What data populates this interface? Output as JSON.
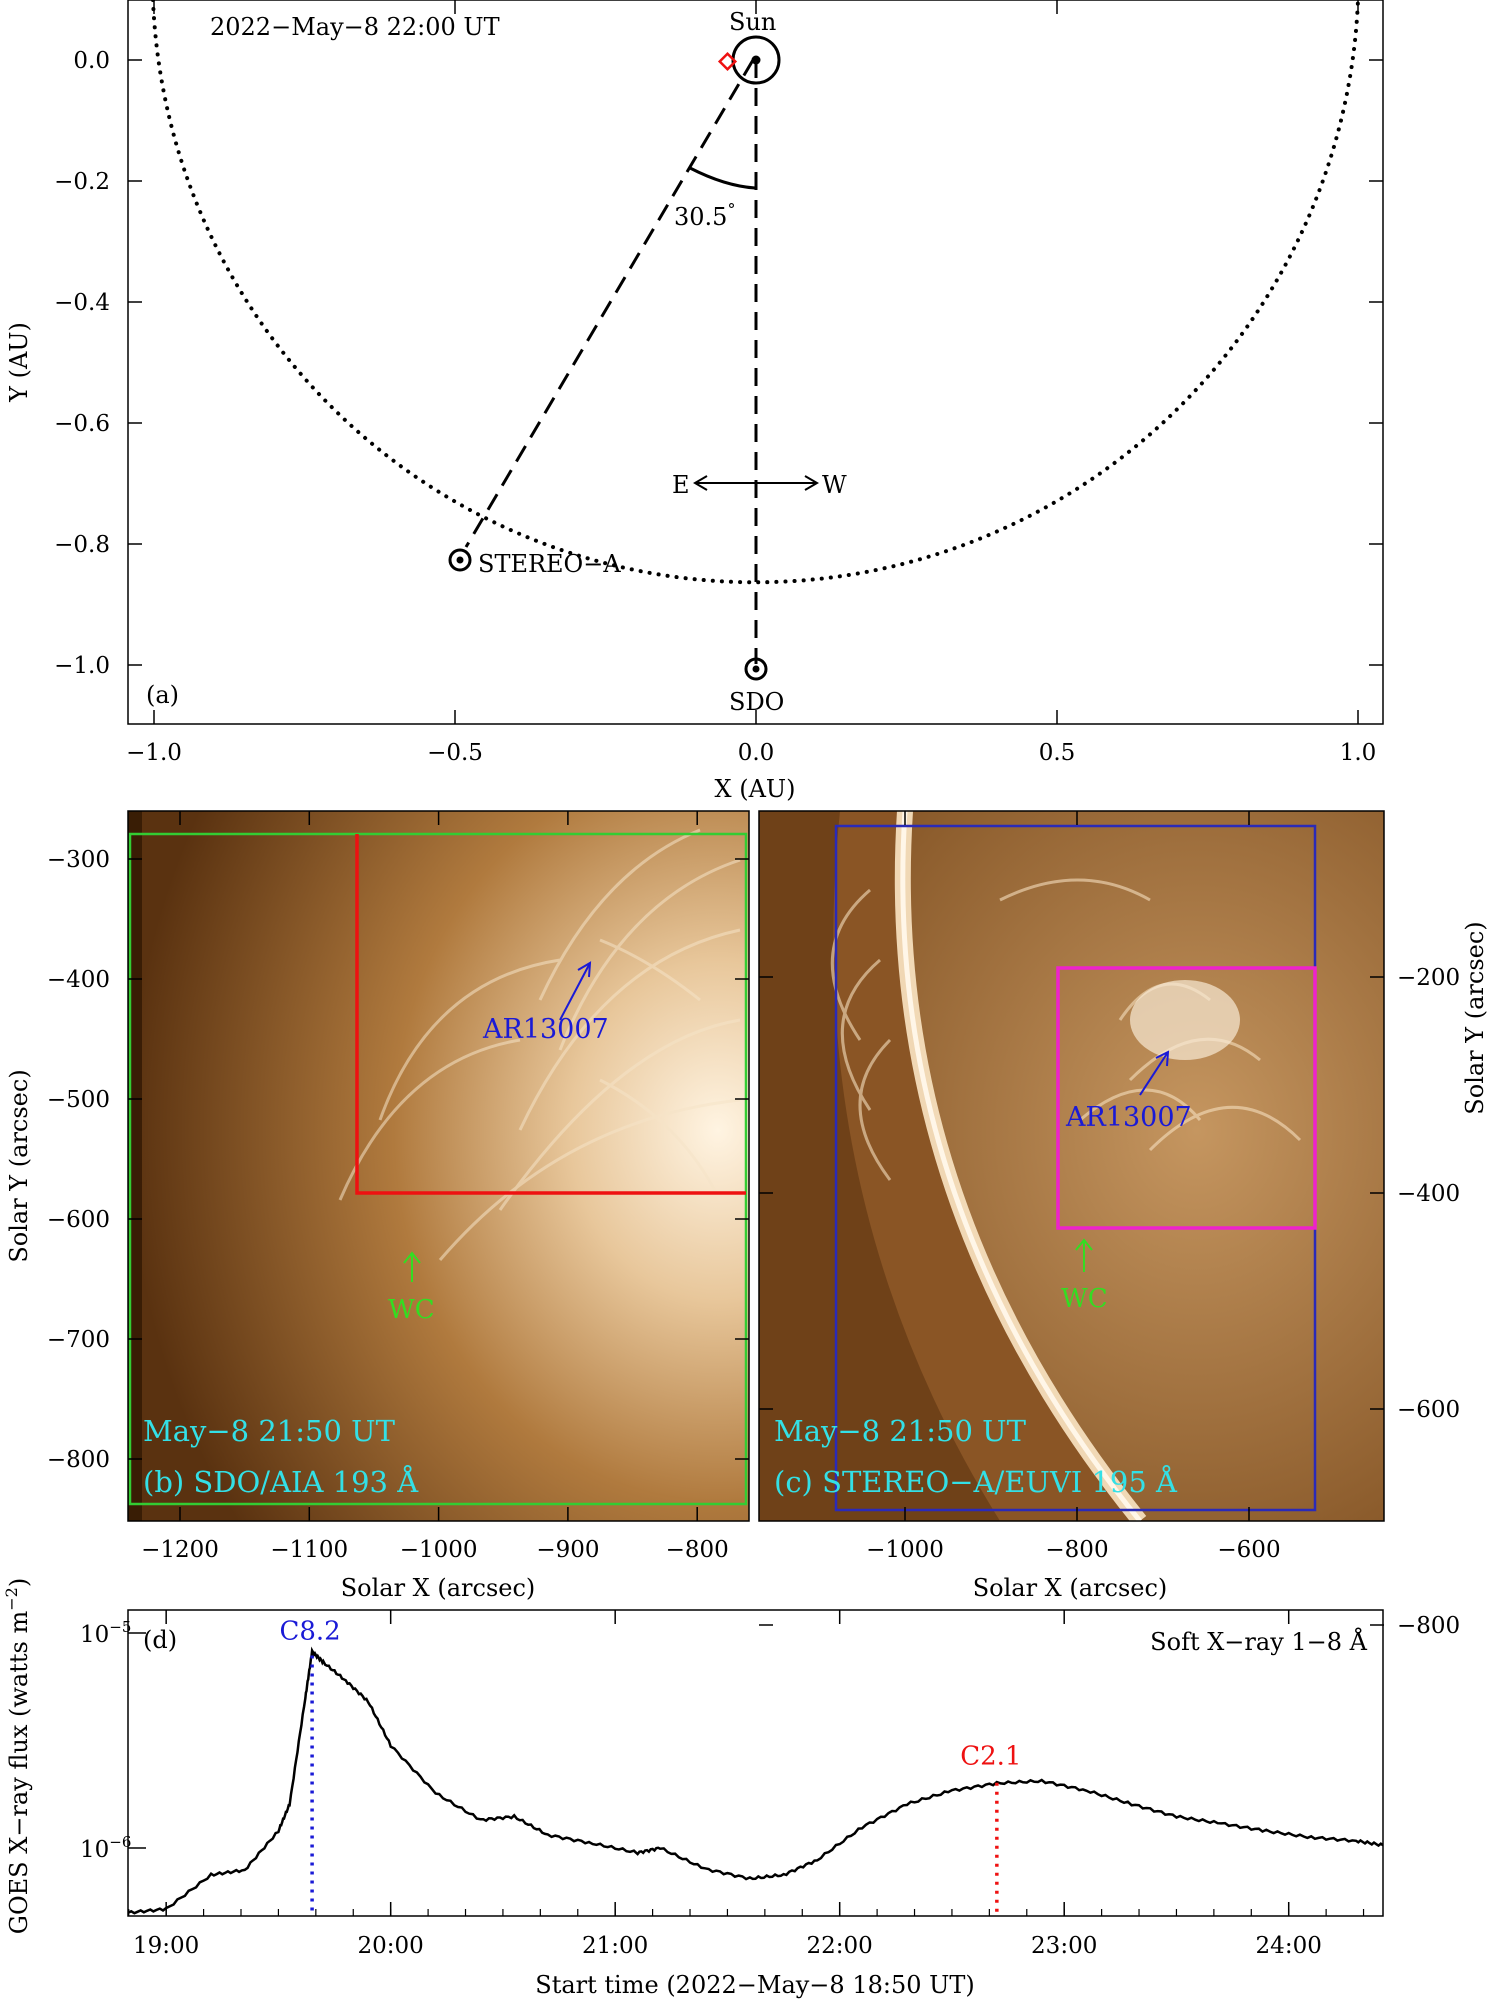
{
  "panel_a": {
    "timestamp": "2022−May−8 22:00 UT",
    "label": "(a)",
    "xlabel": "X (AU)",
    "ylabel": "Y (AU)",
    "xticks": [
      "−1.0",
      "−0.5",
      "0.0",
      "0.5",
      "1.0"
    ],
    "yticks": [
      "0.0",
      "−0.2",
      "−0.4",
      "−0.6",
      "−0.8",
      "−1.0"
    ],
    "sun_label": "Sun",
    "stereo_label": "STEREO−A",
    "sdo_label": "SDO",
    "angle_label": "30.5",
    "degree": "°",
    "east": "E",
    "west": "W"
  },
  "panel_b": {
    "time": "May−8 21:50 UT",
    "label": "(b) SDO/AIA 193 Å",
    "ar_label": "AR13007",
    "wc_label": "WC",
    "xlabel": "Solar X (arcsec)",
    "ylabel": "Solar Y (arcsec)",
    "xticks": [
      "−1200",
      "−1100",
      "−1000",
      "−900",
      "−800"
    ],
    "yticks": [
      "−300",
      "−400",
      "−500",
      "−600",
      "−700",
      "−800"
    ]
  },
  "panel_c": {
    "time": "May−8 21:50 UT",
    "label": "(c) STEREO−A/EUVI 195 Å",
    "ar_label": "AR13007",
    "wc_label": "WC",
    "xlabel": "Solar X (arcsec)",
    "ylabel": "Solar Y (arcsec)",
    "xticks": [
      "−1000",
      "−800",
      "−600"
    ],
    "yticks": [
      "−200",
      "−400",
      "−600",
      "−800"
    ]
  },
  "panel_d": {
    "label": "(d)",
    "title": "Soft X−ray 1−8 Å",
    "ylabel_main": "GOES X−ray flux (watts m",
    "ylabel_sup": "−2",
    "ylabel_close": ")",
    "ytick_base": "10",
    "ytick_exp_top": "−5",
    "ytick_exp_bottom": "−6",
    "xlabel": "Start time (2022−May−8 18:50 UT)",
    "xticks": [
      "19:00",
      "20:00",
      "21:00",
      "22:00",
      "23:00",
      "24:00"
    ],
    "peak1": "C8.2",
    "peak2": "C2.1"
  },
  "colors": {
    "euv": "#b07a3c",
    "green_box": "#33cc33",
    "red_box": "#ee1111",
    "blue_box": "#2a2ab8",
    "magenta_box": "#ee22cc",
    "cyan_text": "#33e0e6",
    "blue_text": "#1a1ad6",
    "green_text": "#33dd22",
    "red_text": "#ee1111"
  },
  "chart_data": [
    {
      "type": "scatter",
      "title": "",
      "xlabel": "X (AU)",
      "ylabel": "Y (AU)",
      "xlim": [
        -1.05,
        1.05
      ],
      "ylim": [
        -1.1,
        0.1
      ],
      "points": [
        {
          "name": "Sun",
          "x": 0.0,
          "y": 0.0
        },
        {
          "name": "STEREO−A",
          "x": -0.49,
          "y": -0.83
        },
        {
          "name": "SDO",
          "x": 0.0,
          "y": -1.01
        }
      ],
      "separation_angle_deg": 30.5
    },
    {
      "type": "line",
      "title": "Soft X−ray 1−8 Å",
      "xlabel": "Start time (2022−May−8 18:50 UT)",
      "ylabel": "GOES X−ray flux (watts m−2)",
      "yscale": "log",
      "xlim": [
        18.83,
        24.42
      ],
      "ylim": [
        4.8e-07,
        1.1e-05
      ],
      "x": [
        18.83,
        19.0,
        19.2,
        19.35,
        19.5,
        19.55,
        19.62,
        19.65,
        19.7,
        19.8,
        19.9,
        20.0,
        20.2,
        20.4,
        20.55,
        20.7,
        20.9,
        21.1,
        21.2,
        21.4,
        21.6,
        21.75,
        21.9,
        22.1,
        22.3,
        22.5,
        22.7,
        22.9,
        23.1,
        23.3,
        23.5,
        23.7,
        23.9,
        24.1,
        24.3,
        24.42
      ],
      "series": [
        {
          "values": [
            5e-07,
            5.2e-07,
            7.5e-07,
            7.9e-07,
            1.2e-06,
            1.6e-06,
            5e-06,
            8.2e-06,
            7.3e-06,
            6e-06,
            4.8e-06,
            3e-06,
            1.8e-06,
            1.35e-06,
            1.4e-06,
            1.15e-06,
            1.05e-06,
            9.5e-07,
            1e-06,
            8e-07,
            7.2e-07,
            7.5e-07,
            8.8e-07,
            1.25e-06,
            1.6e-06,
            1.85e-06,
            2e-06,
            2.05e-06,
            1.85e-06,
            1.6e-06,
            1.4e-06,
            1.3e-06,
            1.2e-06,
            1.12e-06,
            1.08e-06,
            1.03e-06
          ]
        }
      ],
      "annotations": [
        {
          "text": "C8.2",
          "x": 19.65,
          "y": 8.2e-06
        },
        {
          "text": "C2.1",
          "x": 22.7,
          "y": 2.1e-06
        }
      ]
    }
  ]
}
